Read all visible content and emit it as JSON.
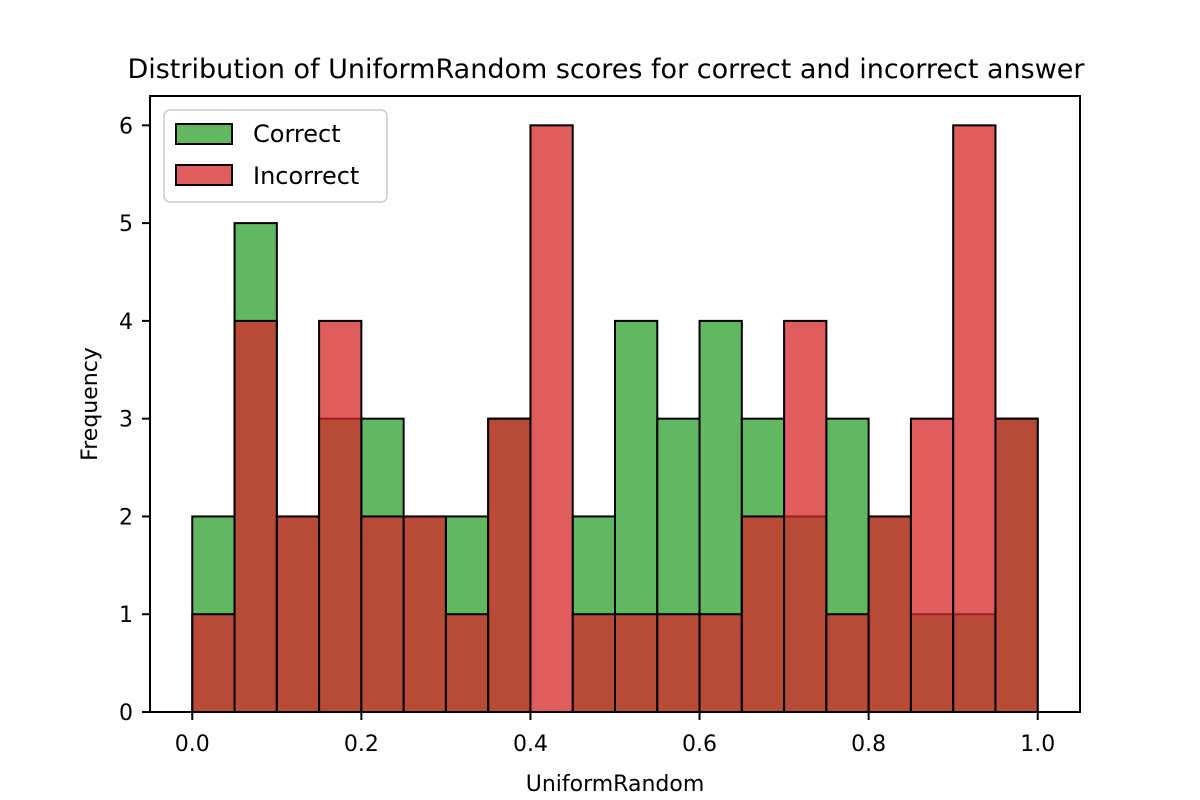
{
  "chart_data": {
    "type": "bar",
    "title": "Distribution of UniformRandom scores for correct and incorrect answer",
    "xlabel": "UniformRandom",
    "ylabel": "Frequency",
    "xlim": [
      -0.05,
      1.05
    ],
    "ylim": [
      0,
      6.3
    ],
    "bin_edges": [
      0.0,
      0.05,
      0.1,
      0.15,
      0.2,
      0.25,
      0.3,
      0.35,
      0.4,
      0.45,
      0.5,
      0.55,
      0.6,
      0.65,
      0.7,
      0.75,
      0.8,
      0.85,
      0.9,
      0.95,
      1.0
    ],
    "x_ticks": [
      "0.0",
      "0.2",
      "0.4",
      "0.6",
      "0.8",
      "1.0"
    ],
    "y_ticks": [
      "0",
      "1",
      "2",
      "3",
      "4",
      "5",
      "6"
    ],
    "grid": false,
    "legend_position": "top-left",
    "series": [
      {
        "name": "Correct",
        "color": "#2ca02c",
        "values": [
          2,
          5,
          2,
          3,
          3,
          2,
          2,
          3,
          0,
          2,
          4,
          3,
          4,
          3,
          2,
          3,
          2,
          1,
          1,
          3
        ]
      },
      {
        "name": "Incorrect",
        "color": "#d62728",
        "values": [
          1,
          4,
          2,
          4,
          2,
          2,
          1,
          3,
          6,
          1,
          1,
          1,
          1,
          2,
          4,
          1,
          2,
          3,
          6,
          3
        ]
      }
    ]
  }
}
